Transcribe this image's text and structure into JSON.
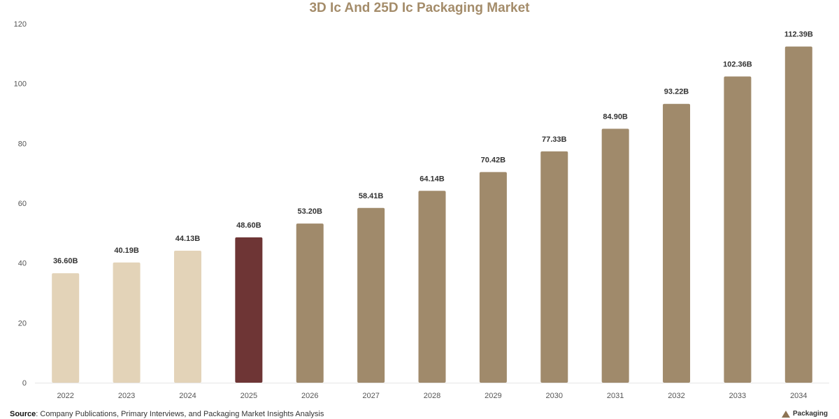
{
  "chart_data": {
    "type": "bar",
    "title": "3D Ic And 25D Ic Packaging Market",
    "xlabel": "",
    "ylabel": "",
    "categories": [
      "2022",
      "2023",
      "2024",
      "2025",
      "2026",
      "2027",
      "2028",
      "2029",
      "2030",
      "2031",
      "2032",
      "2033",
      "2034"
    ],
    "values": [
      36.6,
      40.19,
      44.13,
      48.6,
      53.2,
      58.41,
      64.14,
      70.42,
      77.33,
      84.9,
      93.22,
      102.36,
      112.39
    ],
    "data_labels": [
      "36.60B",
      "40.19B",
      "44.13B",
      "48.60B",
      "53.20B",
      "58.41B",
      "64.14B",
      "70.42B",
      "77.33B",
      "84.90B",
      "93.22B",
      "102.36B",
      "112.39B"
    ],
    "ylim": [
      0,
      120
    ],
    "yticks": [
      0,
      20,
      40,
      60,
      80,
      100,
      120
    ],
    "grid": false,
    "legend": "none",
    "colors": {
      "historical": "#e3d3b8",
      "current": "#6e3535",
      "forecast": "#a08a6b",
      "title": "#a48c6a"
    },
    "bar_groups": [
      "historical",
      "historical",
      "historical",
      "current",
      "forecast",
      "forecast",
      "forecast",
      "forecast",
      "forecast",
      "forecast",
      "forecast",
      "forecast",
      "forecast"
    ]
  },
  "footer": {
    "source_label": "Source",
    "source_text": ": Company Publications, Primary Interviews, and Packaging Market Insights Analysis"
  },
  "brand": {
    "name": "Packaging",
    "icon": "packaging-logo-icon"
  }
}
